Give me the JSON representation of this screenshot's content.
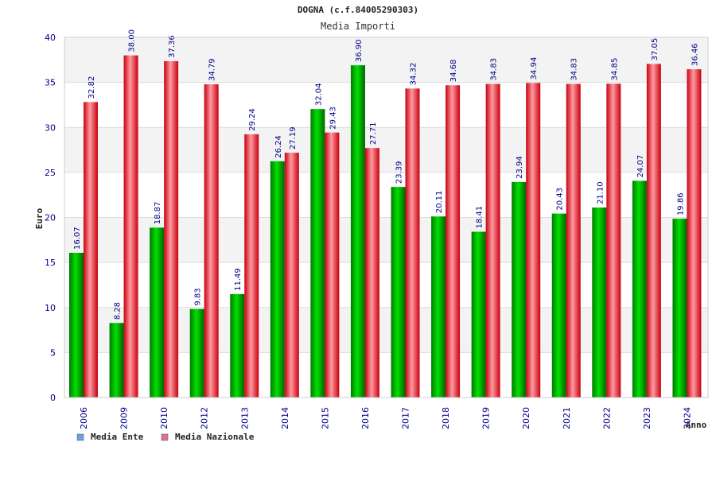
{
  "chart_data": {
    "type": "bar",
    "title": "DOGNA (c.f.84005290303)",
    "subtitle": "Media Importi",
    "xlabel": "Anno",
    "ylabel": "Euro",
    "ylim": [
      0,
      40
    ],
    "yticks": [
      0,
      5,
      10,
      15,
      20,
      25,
      30,
      35,
      40
    ],
    "grid": true,
    "legend_position": "bottom-left",
    "categories": [
      "2006",
      "2009",
      "2010",
      "2012",
      "2013",
      "2014",
      "2015",
      "2016",
      "2017",
      "2018",
      "2019",
      "2020",
      "2021",
      "2022",
      "2023",
      "2024"
    ],
    "series": [
      {
        "name": "Media Ente",
        "color": "#00c000",
        "legend_color": "#6aa0e8",
        "values": [
          16.07,
          8.28,
          18.87,
          9.83,
          11.49,
          26.24,
          32.04,
          36.9,
          23.39,
          20.11,
          18.41,
          23.94,
          20.43,
          21.1,
          24.07,
          19.86
        ],
        "labels": [
          "16.07",
          "8.28",
          "18.87",
          "9.83",
          "11.49",
          "26.24",
          "32.04",
          "36.90",
          "23.39",
          "20.11",
          "18.41",
          "23.94",
          "20.43",
          "21.10",
          "24.07",
          "19.86"
        ]
      },
      {
        "name": "Media Nazionale",
        "color": "#e8202a",
        "legend_color": "#e070a0",
        "values": [
          32.82,
          38.0,
          37.36,
          34.79,
          29.24,
          27.19,
          29.43,
          27.71,
          34.32,
          34.68,
          34.83,
          34.94,
          34.83,
          34.85,
          37.05,
          36.46
        ],
        "labels": [
          "32.82",
          "38.00",
          "37.36",
          "34.79",
          "29.24",
          "27.19",
          "29.43",
          "27.71",
          "34.32",
          "34.68",
          "34.83",
          "34.94",
          "34.83",
          "34.85",
          "37.05",
          "36.46"
        ]
      }
    ]
  }
}
